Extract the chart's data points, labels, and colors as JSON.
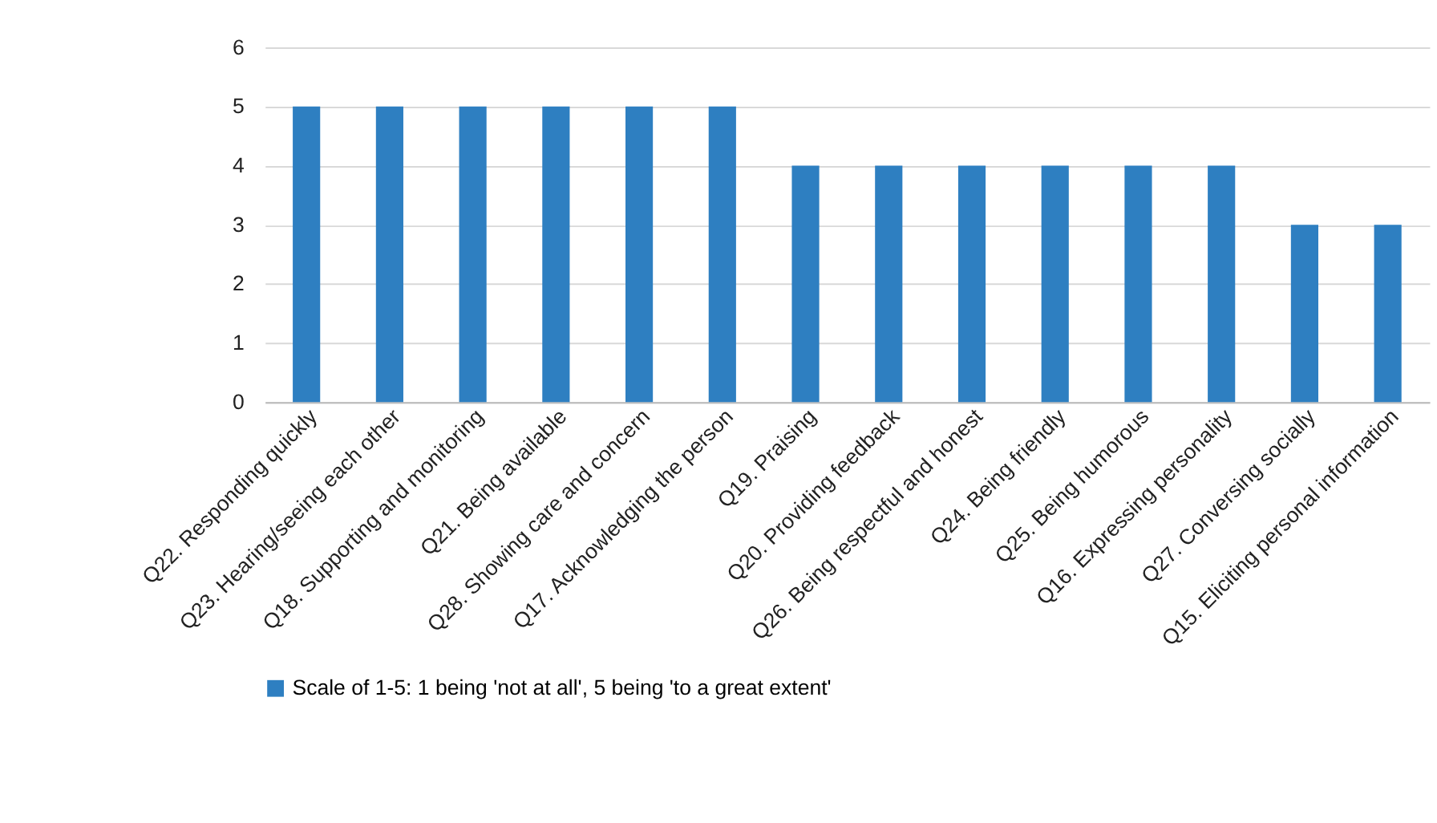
{
  "chart_data": {
    "type": "bar",
    "categories": [
      "Q22. Responding quickly",
      "Q23. Hearing/seeing each other",
      "Q18. Supporting and monitoring",
      "Q21. Being available",
      "Q28. Showing care and concern",
      "Q17. Acknowledging the person",
      "Q19. Praising",
      "Q20. Providing feedback",
      "Q26. Being respectful and honest",
      "Q24. Being friendly",
      "Q25. Being humorous",
      "Q16. Expressing personality",
      "Q27. Conversing socially",
      "Q15. Eliciting personal information"
    ],
    "series": [
      {
        "name": "Scale of 1-5: 1 being 'not at all', 5 being 'to a great extent'",
        "color": "#2e7fc1",
        "values": [
          5,
          5,
          5,
          5,
          5,
          5,
          4,
          4,
          4,
          4,
          4,
          4,
          3,
          3
        ]
      }
    ],
    "ylim": [
      0,
      6
    ],
    "yticks": [
      0,
      1,
      2,
      3,
      4,
      5,
      6
    ],
    "grid": "y",
    "legend": "bottom"
  }
}
